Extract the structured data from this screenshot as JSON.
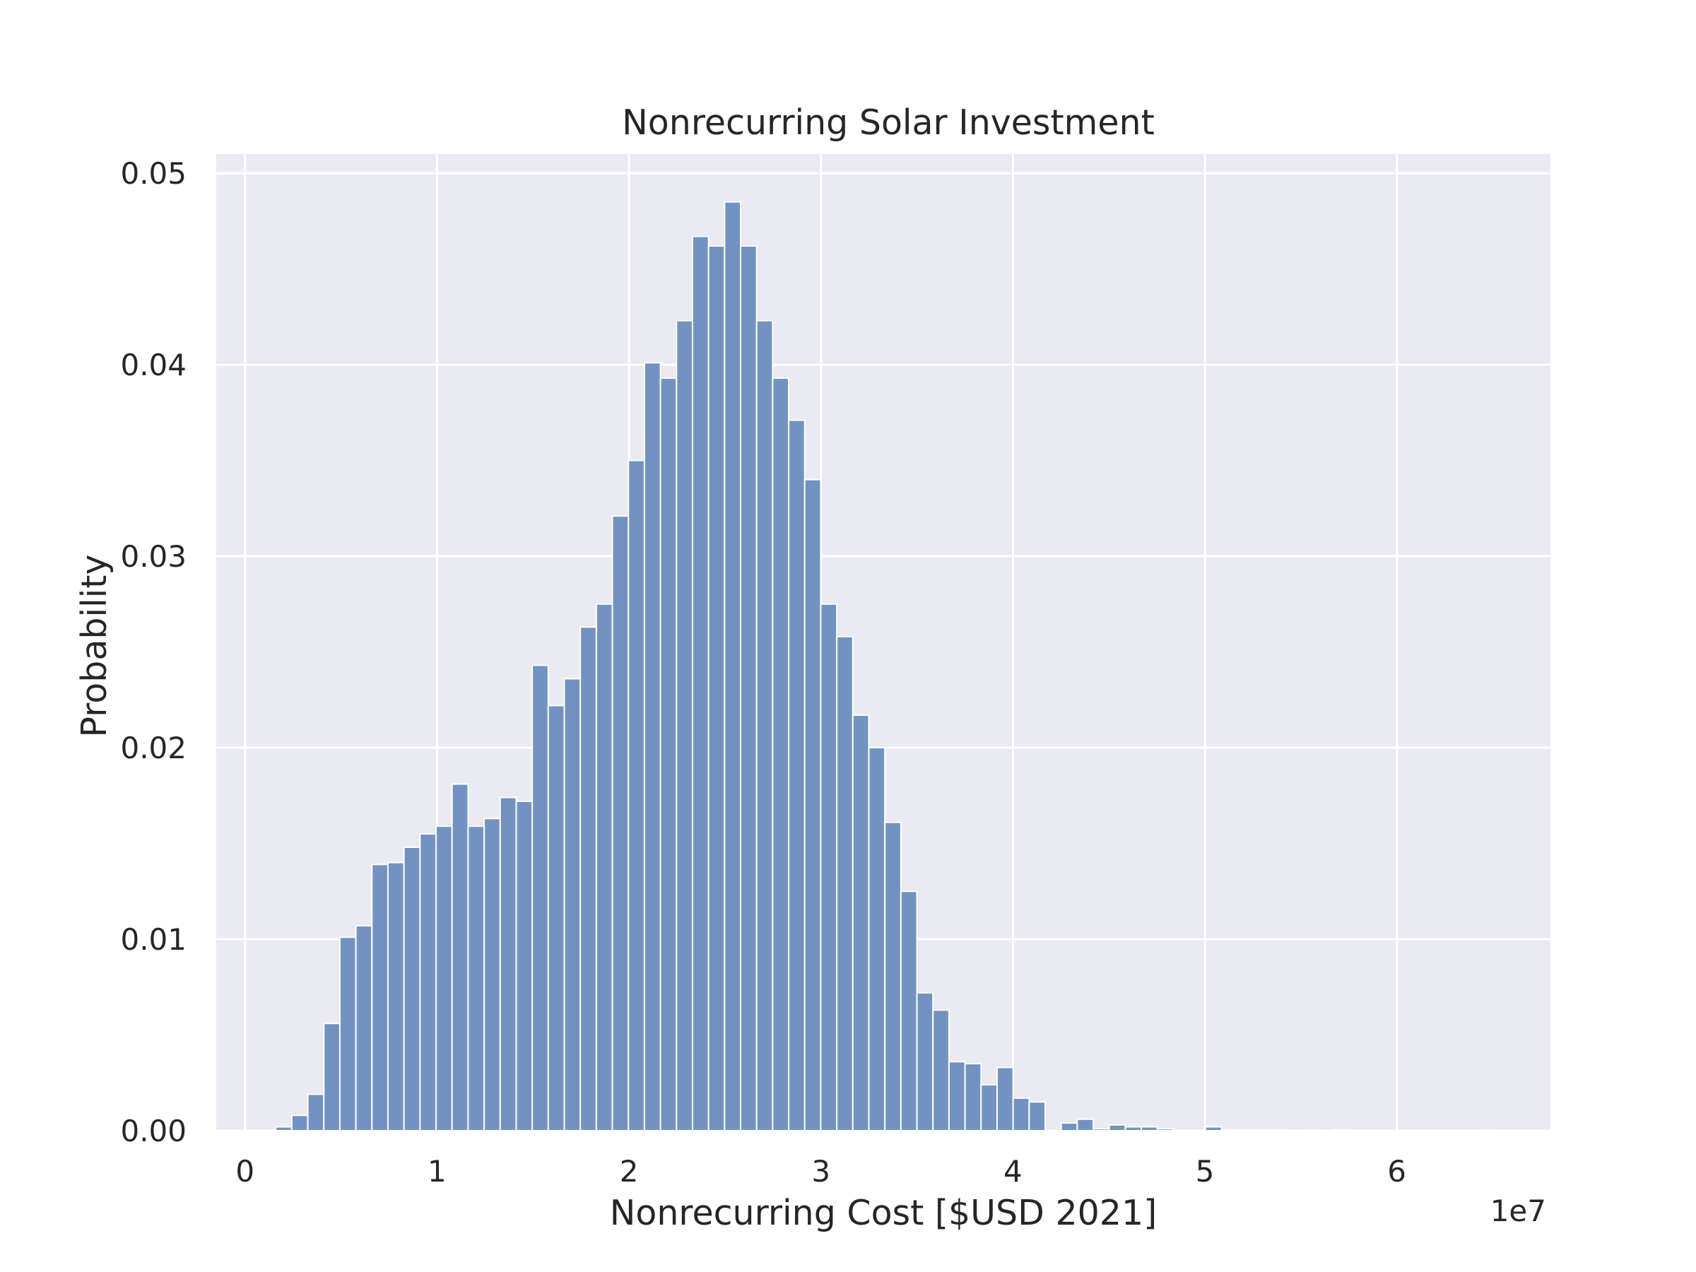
{
  "chart_data": {
    "type": "bar",
    "title": "Nonrecurring Solar Investment",
    "xlabel": "Nonrecurring Cost [$USD 2021]",
    "ylabel": "Probability",
    "x_offset_label": "1e7",
    "x_scale": 10000000,
    "xlim": [
      -0.15,
      6.8
    ],
    "ylim": [
      0,
      0.051
    ],
    "x_ticks": [
      0,
      1,
      2,
      3,
      4,
      5,
      6
    ],
    "x_tick_labels": [
      "0",
      "1",
      "2",
      "3",
      "4",
      "5",
      "6"
    ],
    "y_ticks": [
      0.0,
      0.01,
      0.02,
      0.03,
      0.04,
      0.05
    ],
    "y_tick_labels": [
      "0.00",
      "0.01",
      "0.02",
      "0.03",
      "0.04",
      "0.05"
    ],
    "grid": true,
    "legend": "none",
    "background_color": "#eaeaf2",
    "bar_color": "#7293c1",
    "bar_edge_color": "#ffffff",
    "bin_start": 0.16,
    "bin_width": 0.0835,
    "series": [
      {
        "values": [
          0.0002,
          0.0008,
          0.0019,
          0.0056,
          0.0101,
          0.0107,
          0.0139,
          0.014,
          0.0148,
          0.0155,
          0.0159,
          0.0181,
          0.0159,
          0.0163,
          0.0174,
          0.0172,
          0.0243,
          0.0222,
          0.0236,
          0.0263,
          0.0275,
          0.0321,
          0.035,
          0.0401,
          0.0393,
          0.0423,
          0.0467,
          0.0462,
          0.0485,
          0.0462,
          0.0423,
          0.0393,
          0.0371,
          0.034,
          0.0275,
          0.0258,
          0.0217,
          0.02,
          0.0161,
          0.0125,
          0.0072,
          0.0063,
          0.0036,
          0.0035,
          0.0024,
          0.0033,
          0.0017,
          0.0015,
          0.0,
          0.0004,
          0.0006,
          0.0001,
          0.0003,
          0.0002,
          0.0002,
          0.0001,
          0.0,
          0.0,
          0.0002,
          5e-05,
          5e-05,
          5e-05,
          5e-05,
          0.0,
          3e-05,
          0.0,
          5e-05,
          0.0,
          0.0,
          0.0,
          0.0,
          0.0,
          0.0,
          0.0,
          0.0,
          3e-05
        ]
      }
    ]
  }
}
